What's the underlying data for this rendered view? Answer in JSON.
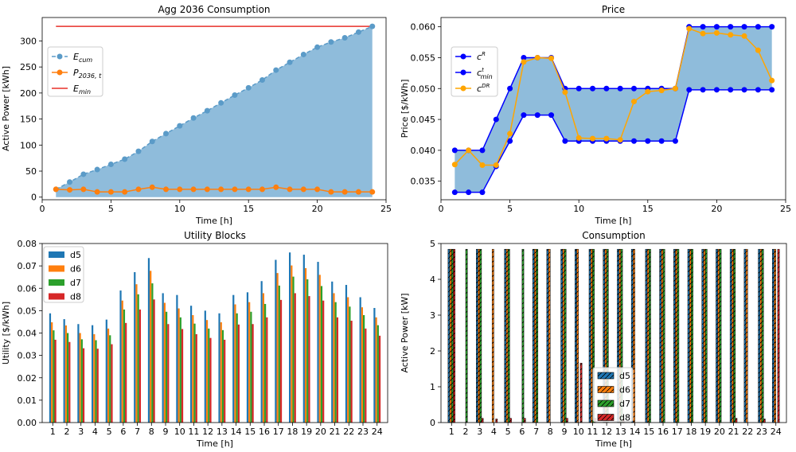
{
  "chart_data": [
    {
      "type": "area",
      "title": "Agg 2036 Consumption",
      "xlabel": "Time [h]",
      "ylabel": "Active Power [kWh]",
      "xlim": [
        0,
        25
      ],
      "ylim": [
        -5,
        345
      ],
      "xticks": [
        0,
        5,
        10,
        15,
        20,
        25
      ],
      "yticks": [
        0,
        50,
        100,
        150,
        200,
        250,
        300
      ],
      "legend_position": "center-left",
      "legend": [
        "E_cum",
        "P_2036,t",
        "E_min"
      ],
      "x": [
        1,
        2,
        3,
        4,
        5,
        6,
        7,
        8,
        9,
        10,
        11,
        12,
        13,
        14,
        15,
        16,
        17,
        18,
        19,
        20,
        21,
        22,
        23,
        24
      ],
      "series": [
        {
          "name": "E_cum",
          "color": "#5b9bc8",
          "style": "dashed-markers",
          "fill": true,
          "fill_color": "#8fbcdb",
          "values": [
            15,
            29,
            44,
            53,
            63,
            73,
            88,
            107,
            122,
            137,
            152,
            166,
            181,
            196,
            210,
            225,
            244,
            259,
            274,
            288,
            298,
            306,
            317,
            328
          ]
        },
        {
          "name": "P_2036,t",
          "color": "#ff7f0e",
          "style": "solid-markers",
          "values": [
            15,
            14,
            15,
            10,
            10,
            10,
            15,
            19,
            15,
            15,
            15,
            15,
            15,
            15,
            15,
            15,
            19,
            15,
            15,
            15,
            10,
            10,
            10,
            10
          ]
        },
        {
          "name": "E_min",
          "color": "#e8302a",
          "style": "solid",
          "x": [
            1,
            24
          ],
          "values": [
            328,
            328
          ]
        }
      ]
    },
    {
      "type": "line",
      "title": "Price",
      "xlabel": "Time [h]",
      "ylabel": "Price [$/kWh]",
      "xlim": [
        0,
        25
      ],
      "ylim": [
        0.032,
        0.0615
      ],
      "xticks": [
        0,
        5,
        10,
        15,
        20,
        25
      ],
      "yticks": [
        "0.035",
        "0.040",
        "0.045",
        "0.050",
        "0.055",
        "0.060"
      ],
      "legend_position": "center-left",
      "legend": [
        "c^R",
        "c^t_min",
        "c^DR"
      ],
      "x": [
        1,
        2,
        3,
        4,
        5,
        6,
        7,
        8,
        9,
        10,
        11,
        12,
        13,
        14,
        15,
        16,
        17,
        18,
        19,
        20,
        21,
        22,
        23,
        24
      ],
      "series": [
        {
          "name": "c^R",
          "color": "#0000ff",
          "values": [
            0.04,
            0.04,
            0.04,
            0.045,
            0.05,
            0.055,
            0.055,
            0.055,
            0.05,
            0.05,
            0.05,
            0.05,
            0.05,
            0.05,
            0.05,
            0.05,
            0.05,
            0.06,
            0.06,
            0.06,
            0.06,
            0.06,
            0.06,
            0.06
          ]
        },
        {
          "name": "c^t_min",
          "color": "#0000ff",
          "values": [
            0.0332,
            0.0332,
            0.0332,
            0.0374,
            0.0415,
            0.0457,
            0.0457,
            0.0457,
            0.0415,
            0.0415,
            0.0415,
            0.0415,
            0.0415,
            0.0415,
            0.0415,
            0.0415,
            0.0415,
            0.0498,
            0.0498,
            0.0498,
            0.0498,
            0.0498,
            0.0498,
            0.0498
          ]
        },
        {
          "name": "c^DR",
          "color": "#ffa500",
          "values": [
            0.0377,
            0.04,
            0.0376,
            0.0376,
            0.0427,
            0.0543,
            0.055,
            0.0549,
            0.0494,
            0.042,
            0.0419,
            0.0419,
            0.0417,
            0.0479,
            0.0495,
            0.0497,
            0.05,
            0.0597,
            0.0589,
            0.059,
            0.0587,
            0.0585,
            0.0562,
            0.0513
          ]
        }
      ],
      "fill_between": {
        "upper": "c^R",
        "lower": "c^t_min",
        "color": "#8fbcdb"
      }
    },
    {
      "type": "bar",
      "title": "Utility Blocks",
      "xlabel": "Time [h]",
      "ylabel": "Utility [$/kWh]",
      "ylim": [
        0,
        0.08
      ],
      "yticks": [
        "0.00",
        "0.01",
        "0.02",
        "0.03",
        "0.04",
        "0.05",
        "0.06",
        "0.07",
        "0.08"
      ],
      "legend_position": "top-left",
      "categories": [
        "1",
        "2",
        "3",
        "4",
        "5",
        "6",
        "7",
        "8",
        "9",
        "10",
        "11",
        "12",
        "13",
        "14",
        "15",
        "16",
        "17",
        "18",
        "19",
        "20",
        "21",
        "22",
        "23",
        "24"
      ],
      "series": [
        {
          "name": "d5",
          "color": "#1f77b4",
          "values": [
            0.0488,
            0.0462,
            0.044,
            0.0435,
            0.046,
            0.059,
            0.0672,
            0.0735,
            0.0578,
            0.057,
            0.0522,
            0.05,
            0.0488,
            0.057,
            0.0582,
            0.0632,
            0.0727,
            0.076,
            0.075,
            0.0718,
            0.063,
            0.0615,
            0.056,
            0.0512
          ]
        },
        {
          "name": "d6",
          "color": "#ff7f0e",
          "values": [
            0.0448,
            0.0434,
            0.04,
            0.0395,
            0.042,
            0.0545,
            0.0618,
            0.0678,
            0.0535,
            0.051,
            0.048,
            0.0458,
            0.0448,
            0.0528,
            0.0538,
            0.0578,
            0.0668,
            0.0702,
            0.069,
            0.066,
            0.0578,
            0.056,
            0.0515,
            0.047
          ]
        },
        {
          "name": "d7",
          "color": "#2ca02c",
          "values": [
            0.0412,
            0.04,
            0.0372,
            0.0368,
            0.039,
            0.0505,
            0.0573,
            0.0622,
            0.0495,
            0.047,
            0.0442,
            0.042,
            0.0413,
            0.0488,
            0.0495,
            0.053,
            0.0612,
            0.0652,
            0.064,
            0.061,
            0.0538,
            0.0518,
            0.048,
            0.0435
          ]
        },
        {
          "name": "d8",
          "color": "#d62728",
          "values": [
            0.037,
            0.036,
            0.0332,
            0.033,
            0.035,
            0.0445,
            0.0505,
            0.055,
            0.044,
            0.0418,
            0.0395,
            0.0378,
            0.037,
            0.0438,
            0.044,
            0.047,
            0.0548,
            0.0578,
            0.0565,
            0.0545,
            0.047,
            0.0455,
            0.042,
            0.0388
          ]
        }
      ]
    },
    {
      "type": "bar",
      "title": "Consumption",
      "xlabel": "Time [h]",
      "ylabel": "Active Power [kW]",
      "ylim": [
        0,
        5
      ],
      "yticks": [
        "0",
        "1",
        "2",
        "3",
        "4",
        "5"
      ],
      "legend_position": "center",
      "hatch": "/",
      "categories": [
        "1",
        "2",
        "3",
        "4",
        "5",
        "6",
        "7",
        "8",
        "9",
        "10",
        "11",
        "12",
        "13",
        "14",
        "15",
        "16",
        "17",
        "18",
        "19",
        "20",
        "21",
        "22",
        "23",
        "24"
      ],
      "series": [
        {
          "name": "d5",
          "color": "#1f77b4",
          "values": [
            4.84,
            0,
            4.84,
            0,
            4.84,
            0,
            4.84,
            4.84,
            4.84,
            4.84,
            4.84,
            4.84,
            4.84,
            4.84,
            4.84,
            4.84,
            4.84,
            4.84,
            4.84,
            4.84,
            4.84,
            4.84,
            4.84,
            4.84
          ]
        },
        {
          "name": "d6",
          "color": "#ff7f0e",
          "values": [
            4.84,
            0,
            4.84,
            4.84,
            4.84,
            0,
            4.84,
            4.84,
            4.84,
            4.84,
            4.84,
            4.84,
            4.84,
            4.84,
            4.84,
            4.84,
            4.84,
            4.84,
            4.84,
            4.84,
            4.84,
            4.84,
            4.84,
            4.84
          ]
        },
        {
          "name": "d7",
          "color": "#2ca02c",
          "values": [
            4.84,
            4.84,
            4.84,
            0,
            4.84,
            4.84,
            4.84,
            0,
            4.84,
            0,
            4.84,
            4.84,
            4.84,
            0,
            4.84,
            4.84,
            4.84,
            4.84,
            4.84,
            4.84,
            4.84,
            0,
            4.84,
            0
          ]
        },
        {
          "name": "d8",
          "color": "#d62728",
          "values": [
            4.84,
            0,
            0.12,
            0.1,
            0.12,
            0.12,
            0,
            0,
            0.12,
            1.66,
            0.12,
            0,
            0.1,
            0,
            0,
            0,
            0,
            0,
            0,
            0,
            0.12,
            0,
            0.1,
            4.84
          ]
        }
      ]
    }
  ]
}
